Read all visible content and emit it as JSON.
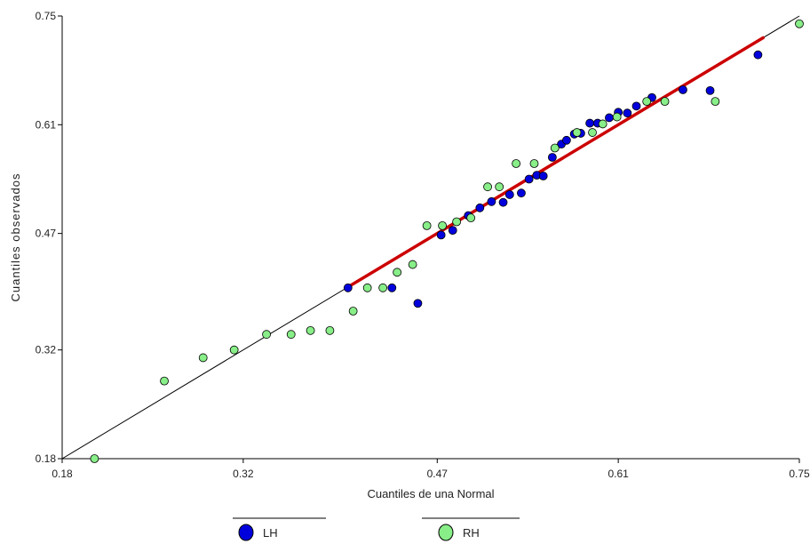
{
  "chart_data": {
    "type": "scatter",
    "title": "",
    "xlabel": "Cuantiles de una Normal",
    "ylabel": "Cuantiles observados",
    "xlim": [
      0.18,
      0.75
    ],
    "ylim": [
      0.18,
      0.75
    ],
    "x_ticks": [
      0.18,
      0.32,
      0.47,
      0.61,
      0.75
    ],
    "y_ticks": [
      0.18,
      0.32,
      0.47,
      0.61,
      0.75
    ],
    "x_tick_labels": [
      "0.18",
      "0.32",
      "0.47",
      "0.61",
      "0.75"
    ],
    "y_tick_labels": [
      "0.18",
      "0.32",
      "0.47",
      "0.61",
      "0.75"
    ],
    "grid": false,
    "legend_position": "bottom",
    "reference_line": {
      "color": "#000000",
      "from": [
        0.18,
        0.18
      ],
      "to": [
        0.75,
        0.75
      ]
    },
    "fit_line": {
      "color": "#cc0000",
      "from": [
        0.401,
        0.401
      ],
      "to": [
        0.722,
        0.722
      ]
    },
    "series": [
      {
        "name": "LH",
        "color": "#0000dd",
        "points": [
          [
            0.401,
            0.4
          ],
          [
            0.435,
            0.4
          ],
          [
            0.455,
            0.38
          ],
          [
            0.473,
            0.468
          ],
          [
            0.482,
            0.474
          ],
          [
            0.494,
            0.493
          ],
          [
            0.503,
            0.503
          ],
          [
            0.512,
            0.511
          ],
          [
            0.521,
            0.51
          ],
          [
            0.526,
            0.52
          ],
          [
            0.535,
            0.522
          ],
          [
            0.541,
            0.54
          ],
          [
            0.547,
            0.545
          ],
          [
            0.552,
            0.544
          ],
          [
            0.559,
            0.568
          ],
          [
            0.566,
            0.585
          ],
          [
            0.57,
            0.59
          ],
          [
            0.576,
            0.598
          ],
          [
            0.581,
            0.599
          ],
          [
            0.588,
            0.612
          ],
          [
            0.594,
            0.612
          ],
          [
            0.603,
            0.619
          ],
          [
            0.61,
            0.626
          ],
          [
            0.617,
            0.625
          ],
          [
            0.624,
            0.634
          ],
          [
            0.636,
            0.645
          ],
          [
            0.66,
            0.655
          ],
          [
            0.681,
            0.654
          ],
          [
            0.718,
            0.7
          ]
        ]
      },
      {
        "name": "RH",
        "color": "#88ee88",
        "points": [
          [
            0.205,
            0.18
          ],
          [
            0.259,
            0.28
          ],
          [
            0.289,
            0.31
          ],
          [
            0.313,
            0.32
          ],
          [
            0.338,
            0.34
          ],
          [
            0.357,
            0.34
          ],
          [
            0.372,
            0.345
          ],
          [
            0.387,
            0.345
          ],
          [
            0.405,
            0.37
          ],
          [
            0.416,
            0.4
          ],
          [
            0.428,
            0.4
          ],
          [
            0.439,
            0.42
          ],
          [
            0.451,
            0.43
          ],
          [
            0.462,
            0.48
          ],
          [
            0.474,
            0.48
          ],
          [
            0.485,
            0.485
          ],
          [
            0.496,
            0.49
          ],
          [
            0.509,
            0.53
          ],
          [
            0.518,
            0.53
          ],
          [
            0.531,
            0.56
          ],
          [
            0.545,
            0.56
          ],
          [
            0.561,
            0.58
          ],
          [
            0.578,
            0.6
          ],
          [
            0.59,
            0.6
          ],
          [
            0.598,
            0.611
          ],
          [
            0.609,
            0.62
          ],
          [
            0.632,
            0.64
          ],
          [
            0.646,
            0.64
          ],
          [
            0.685,
            0.64
          ],
          [
            0.75,
            0.74
          ]
        ]
      }
    ]
  }
}
